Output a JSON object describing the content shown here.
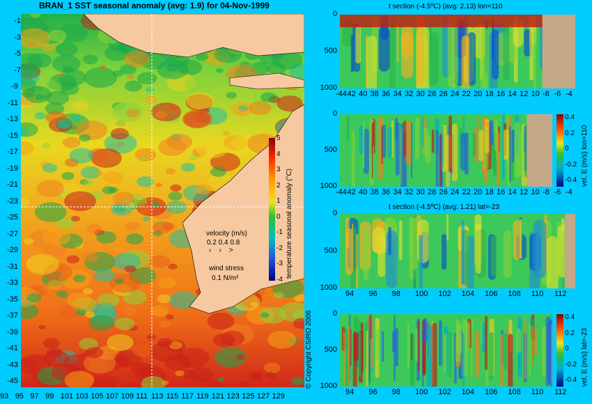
{
  "map": {
    "title": "BRAN_1 SST seasonal anomaly (avg: 1.9) for 04-Nov-1999",
    "y_ticks": [
      "-1",
      "-3",
      "-5",
      "-7",
      "-9",
      "-11",
      "-13",
      "-15",
      "-17",
      "-19",
      "-21",
      "-23",
      "-25",
      "-27",
      "-29",
      "-31",
      "-33",
      "-35",
      "-37",
      "-39",
      "-41",
      "-43",
      "-45"
    ],
    "x_ticks": [
      "93",
      "95",
      "97",
      "99",
      "101",
      "103",
      "105",
      "107",
      "109",
      "111",
      "113",
      "115",
      "117",
      "119",
      "121",
      "123",
      "125",
      "127",
      "129"
    ],
    "colorbar": {
      "label": "temperature seasonal anomaly (°C)",
      "ticks": [
        "5",
        "4",
        "3",
        "2",
        "1",
        "0",
        "-1",
        "-2",
        "-3",
        "-4"
      ]
    },
    "velocity_legend": {
      "title": "velocity (m/s)",
      "values": "0.2 0.4 0.8"
    },
    "wind_legend": {
      "title": "wind stress",
      "value": "0.1 N/m²"
    },
    "copyright": "© Copyright CSIRO 2006"
  },
  "panels": [
    {
      "title": "t section (-4.5ºC) (avg: 2.13) lon=110",
      "x_ticks": [
        "-44",
        "42",
        "40",
        "38",
        "36",
        "34",
        "32",
        "30",
        "28",
        "26",
        "24",
        "22",
        "20",
        "18",
        "16",
        "14",
        "12",
        "10",
        "-8",
        "-6",
        "-4"
      ],
      "y_ticks": [
        "0",
        "500",
        "1000"
      ]
    },
    {
      "title": "",
      "x_ticks": [
        "-44",
        "42",
        "40",
        "38",
        "36",
        "34",
        "32",
        "30",
        "28",
        "26",
        "24",
        "22",
        "20",
        "18",
        "16",
        "14",
        "12",
        "10",
        "-8",
        "-6",
        "-4"
      ],
      "y_ticks": [
        "0",
        "500",
        "1000"
      ],
      "colorbar_ticks": [
        "0.4",
        "0.2",
        "0",
        "-0.2",
        "-0.4"
      ],
      "colorbar_label": "vel. E (m/s) lon=110"
    },
    {
      "title": "t section (-4.5ºC) (avg: 1.21) lat=-23",
      "x_ticks": [
        "94",
        "96",
        "98",
        "100",
        "102",
        "104",
        "106",
        "108",
        "110",
        "112"
      ],
      "y_ticks": [
        "0",
        "500",
        "1000"
      ]
    },
    {
      "title": "",
      "x_ticks": [
        "94",
        "96",
        "98",
        "100",
        "102",
        "104",
        "106",
        "108",
        "110",
        "112"
      ],
      "y_ticks": [
        "0",
        "500",
        "1000"
      ],
      "colorbar_ticks": [
        "0.4",
        "0.2",
        "0",
        "-0.2",
        "-0.4"
      ],
      "colorbar_label": "vel. E (m/s) lat=-23"
    }
  ],
  "chart_data": [
    {
      "type": "heatmap",
      "title": "BRAN_1 SST seasonal anomaly (avg: 1.9) for 04-Nov-1999",
      "xlim": [
        93,
        130
      ],
      "ylim": [
        -45,
        0
      ],
      "colorbar_range": [
        -4,
        5
      ],
      "colorbar_label": "temperature seasonal anomaly (°C)"
    },
    {
      "type": "heatmap",
      "title": "t section (-4.5ºC) (avg: 2.13) lon=110",
      "xlim": [
        -45,
        -3
      ],
      "ylim": [
        1000,
        0
      ]
    },
    {
      "type": "heatmap",
      "xlim": [
        -45,
        -3
      ],
      "ylim": [
        1000,
        0
      ],
      "colorbar_range": [
        -0.5,
        0.5
      ],
      "colorbar_label": "vel. E (m/s) lon=110"
    },
    {
      "type": "heatmap",
      "title": "t section (-4.5ºC) (avg: 1.21) lat=-23",
      "xlim": [
        93,
        114
      ],
      "ylim": [
        1000,
        0
      ]
    },
    {
      "type": "heatmap",
      "xlim": [
        93,
        114
      ],
      "ylim": [
        1000,
        0
      ],
      "colorbar_range": [
        -0.5,
        0.5
      ],
      "colorbar_label": "vel. E (m/s) lat=-23"
    }
  ]
}
